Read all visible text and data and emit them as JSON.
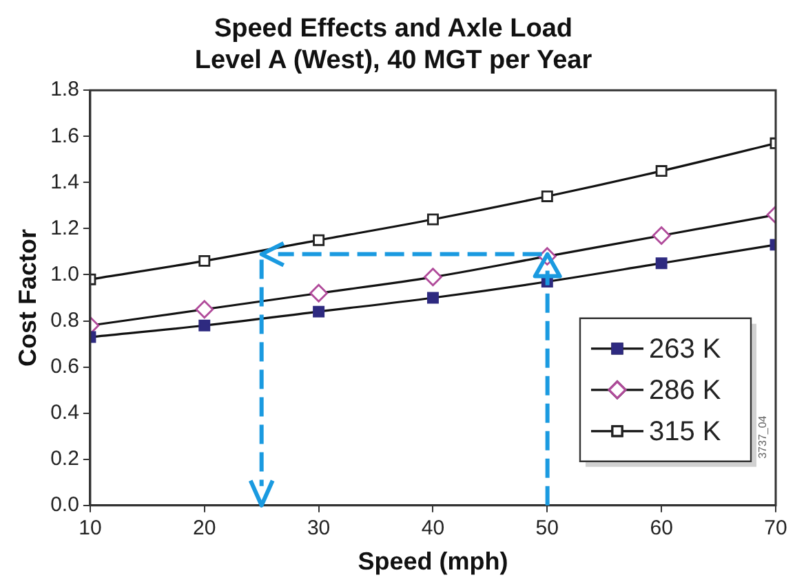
{
  "chart_data": {
    "type": "line",
    "title": "Speed Effects and Axle Load\nLevel A (West), 40 MGT per Year",
    "xlabel": "Speed (mph)",
    "ylabel": "Cost Factor",
    "x": [
      10,
      20,
      30,
      40,
      50,
      60,
      70
    ],
    "series": [
      {
        "name": "263 K",
        "color": "#2e2a80",
        "marker": "square",
        "values": [
          0.73,
          0.78,
          0.84,
          0.9,
          0.97,
          1.05,
          1.13
        ]
      },
      {
        "name": "286 K",
        "color": "#b04a9a",
        "marker": "diamond",
        "values": [
          0.78,
          0.85,
          0.92,
          0.99,
          1.08,
          1.17,
          1.26
        ]
      },
      {
        "name": "315 K",
        "color": "#222222",
        "marker": "square",
        "values": [
          0.98,
          1.06,
          1.15,
          1.24,
          1.34,
          1.45,
          1.57
        ]
      }
    ],
    "xlim": [
      10,
      70
    ],
    "xticks": [
      10,
      20,
      30,
      40,
      50,
      60,
      70
    ],
    "ylim": [
      0,
      1.8
    ],
    "yticks": [
      {
        "value": 0,
        "label": "0.0"
      },
      0.2,
      0.4,
      0.6,
      0.8,
      {
        "value": 1,
        "label": "1.0"
      },
      1.2,
      1.4,
      1.6,
      1.8
    ],
    "grid": false,
    "legend": "bottom right",
    "line_style": "solid",
    "annotations": [
      "3737_04"
    ]
  }
}
